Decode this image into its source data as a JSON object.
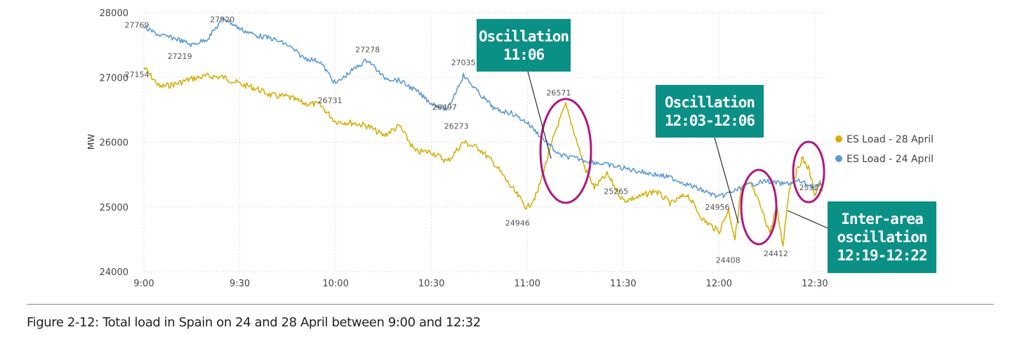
{
  "chart_data": {
    "type": "line",
    "ylabel": "MW",
    "xlabel": "",
    "ylim": [
      24000,
      28000
    ],
    "xlim": [
      "9:00",
      "12:32"
    ],
    "yticks": [
      "24000",
      "25000",
      "26000",
      "27000",
      "28000"
    ],
    "xticks": [
      "9:00",
      "9:30",
      "10:00",
      "10:30",
      "11:00",
      "11:30",
      "12:00",
      "12:30"
    ],
    "grid": true,
    "legend_position": "right",
    "series": [
      {
        "name": "ES Load - 28 April",
        "color": "#d4af08",
        "points": [
          [
            "9:00",
            27154
          ],
          [
            "9:05",
            26850
          ],
          [
            "9:10",
            26900
          ],
          [
            "9:15",
            26980
          ],
          [
            "9:20",
            27020
          ],
          [
            "9:25",
            27000
          ],
          [
            "9:30",
            26900
          ],
          [
            "9:35",
            26830
          ],
          [
            "9:40",
            26720
          ],
          [
            "9:45",
            26700
          ],
          [
            "9:50",
            26600
          ],
          [
            "9:55",
            26580
          ],
          [
            "10:00",
            26320
          ],
          [
            "10:05",
            26300
          ],
          [
            "10:10",
            26250
          ],
          [
            "10:15",
            26100
          ],
          [
            "10:20",
            26250
          ],
          [
            "10:25",
            25850
          ],
          [
            "10:30",
            25850
          ],
          [
            "10:35",
            25700
          ],
          [
            "10:40",
            26000
          ],
          [
            "10:45",
            25900
          ],
          [
            "10:50",
            25650
          ],
          [
            "10:55",
            25300
          ],
          [
            "11:00",
            24980
          ],
          [
            "11:03",
            25200
          ],
          [
            "11:06",
            25700
          ],
          [
            "11:09",
            26200
          ],
          [
            "11:12",
            26571
          ],
          [
            "11:15",
            26100
          ],
          [
            "11:18",
            25600
          ],
          [
            "11:21",
            25300
          ],
          [
            "11:25",
            25500
          ],
          [
            "11:30",
            25100
          ],
          [
            "11:35",
            25150
          ],
          [
            "11:40",
            25250
          ],
          [
            "11:45",
            25050
          ],
          [
            "11:50",
            25200
          ],
          [
            "11:55",
            24800
          ],
          [
            "12:00",
            24620
          ],
          [
            "12:03",
            24956
          ],
          [
            "12:05",
            24500
          ],
          [
            "12:07",
            25300
          ],
          [
            "12:10",
            25350
          ],
          [
            "12:13",
            25000
          ],
          [
            "12:16",
            24600
          ],
          [
            "12:18",
            25000
          ],
          [
            "12:20",
            24412
          ],
          [
            "12:22",
            25300
          ],
          [
            "12:24",
            25500
          ],
          [
            "12:26",
            25750
          ],
          [
            "12:28",
            25600
          ],
          [
            "12:30",
            25200
          ],
          [
            "12:32",
            25400
          ]
        ]
      },
      {
        "name": "ES Load - 24 April",
        "color": "#5b9bd5",
        "points": [
          [
            "9:00",
            27769
          ],
          [
            "9:05",
            27650
          ],
          [
            "9:10",
            27600
          ],
          [
            "9:15",
            27500
          ],
          [
            "9:20",
            27600
          ],
          [
            "9:25",
            27920
          ],
          [
            "9:30",
            27750
          ],
          [
            "9:35",
            27650
          ],
          [
            "9:40",
            27600
          ],
          [
            "9:45",
            27500
          ],
          [
            "9:50",
            27300
          ],
          [
            "9:55",
            27250
          ],
          [
            "10:00",
            26900
          ],
          [
            "10:05",
            27100
          ],
          [
            "10:10",
            27278
          ],
          [
            "10:15",
            27000
          ],
          [
            "10:20",
            26950
          ],
          [
            "10:25",
            26800
          ],
          [
            "10:30",
            26600
          ],
          [
            "10:35",
            26500
          ],
          [
            "10:40",
            27035
          ],
          [
            "10:45",
            26750
          ],
          [
            "10:50",
            26500
          ],
          [
            "10:55",
            26450
          ],
          [
            "11:00",
            26300
          ],
          [
            "11:05",
            26050
          ],
          [
            "11:10",
            25800
          ],
          [
            "11:15",
            25750
          ],
          [
            "11:20",
            25700
          ],
          [
            "11:25",
            25650
          ],
          [
            "11:30",
            25600
          ],
          [
            "11:35",
            25550
          ],
          [
            "11:40",
            25500
          ],
          [
            "11:45",
            25450
          ],
          [
            "11:50",
            25350
          ],
          [
            "11:55",
            25250
          ],
          [
            "12:00",
            25150
          ],
          [
            "12:05",
            25250
          ],
          [
            "12:10",
            25350
          ],
          [
            "12:15",
            25400
          ],
          [
            "12:20",
            25350
          ],
          [
            "12:25",
            25400
          ],
          [
            "12:30",
            25300
          ],
          [
            "12:32",
            25350
          ]
        ]
      }
    ],
    "data_labels": [
      {
        "text": "27769",
        "x": "9:00",
        "y": 27769
      },
      {
        "text": "27154",
        "x": "9:00",
        "y": 27154
      },
      {
        "text": "27219",
        "x": "9:13",
        "y": 27219
      },
      {
        "text": "27920",
        "x": "9:25",
        "y": 27920
      },
      {
        "text": "27278",
        "x": "10:10",
        "y": 27278
      },
      {
        "text": "26731",
        "x": "10:00",
        "y": 26731
      },
      {
        "text": "27035",
        "x": "10:40",
        "y": 27035
      },
      {
        "text": "26497",
        "x": "10:35",
        "y": 26497
      },
      {
        "text": "26273",
        "x": "10:40",
        "y": 26273
      },
      {
        "text": "26571",
        "x": "11:12",
        "y": 26571
      },
      {
        "text": "24946",
        "x": "11:00",
        "y": 24946
      },
      {
        "text": "25265",
        "x": "11:30",
        "y": 25265
      },
      {
        "text": "24956",
        "x": "12:03",
        "y": 24956
      },
      {
        "text": "24408",
        "x": "12:05",
        "y": 24408
      },
      {
        "text": "24412",
        "x": "12:20",
        "y": 24412
      },
      {
        "text": "25322",
        "x": "12:32",
        "y": 25322
      }
    ],
    "annotations": [
      {
        "lines": [
          "Oscillation",
          "11:06"
        ]
      },
      {
        "lines": [
          "Oscillation",
          "12:03-12:06"
        ]
      },
      {
        "lines": [
          "Inter-area",
          "oscillation",
          "12:19-12:22"
        ]
      }
    ]
  },
  "caption": "Figure 2-12: Total load in Spain on 24 and 28 April between 9:00 and 12:32",
  "colors": {
    "callout": "#0b9085",
    "circle": "#b0187d"
  }
}
